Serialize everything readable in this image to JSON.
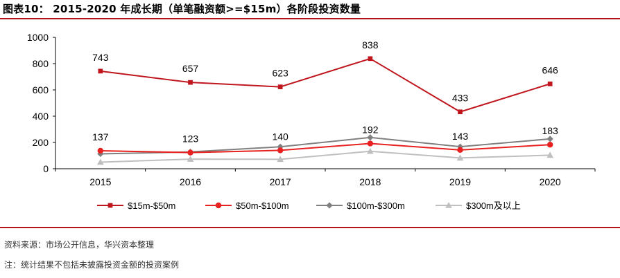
{
  "header": {
    "title": "图表10： 2015-2020 年成长期（单笔融资额>=$15m）各阶段投资数量"
  },
  "footer": {
    "source": "资料来源：市场公开信息，华兴资本整理",
    "note": "注：统计结果不包括未披露投资金额的投资案例"
  },
  "colors": {
    "accent": "#b5121b",
    "series1": "#c0171f",
    "series2": "#e8201f",
    "series3": "#808080",
    "series4": "#bfbfbf"
  },
  "chart_data": {
    "type": "line",
    "title": "",
    "xlabel": "",
    "ylabel": "",
    "categories": [
      "2015",
      "2016",
      "2017",
      "2018",
      "2019",
      "2020"
    ],
    "ylim": [
      0,
      1000
    ],
    "yticks": [
      0,
      200,
      400,
      600,
      800,
      1000
    ],
    "grid": false,
    "legend_position": "bottom",
    "series": [
      {
        "name": "$15m-$50m",
        "values": [
          743,
          657,
          623,
          838,
          433,
          646
        ],
        "marker": "square",
        "labels": [
          "743",
          "657",
          "623",
          "838",
          "433",
          "646"
        ]
      },
      {
        "name": "$50m-$100m",
        "values": [
          137,
          123,
          140,
          192,
          143,
          183
        ],
        "marker": "circle",
        "labels": [
          "137",
          "123",
          "140",
          "192",
          "143",
          "183"
        ]
      },
      {
        "name": "$100m-$300m",
        "values": [
          113,
          128,
          167,
          238,
          168,
          227
        ],
        "marker": "diamond",
        "labels": []
      },
      {
        "name": "$300m及以上",
        "values": [
          50,
          73,
          72,
          133,
          82,
          103
        ],
        "marker": "triangle",
        "labels": []
      }
    ]
  }
}
